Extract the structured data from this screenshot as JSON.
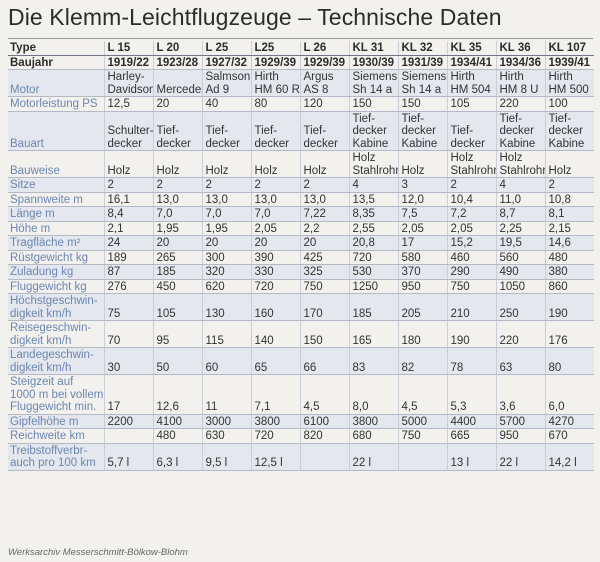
{
  "title": "Die Klemm-Leichtflugzeuge – Technische Daten",
  "caption": "Werksarchiv Messerschmitt-Bölkow-Blohm",
  "table": {
    "header_label": "Type",
    "types": [
      "L 15",
      "L 20",
      "L 25",
      "L25",
      "L 26",
      "KL 31",
      "KL 32",
      "KL 35",
      "KL 36",
      "KL 107"
    ],
    "rows": [
      {
        "label": [
          "Baujahr"
        ],
        "values": [
          [
            "1919/22"
          ],
          [
            "1923/28"
          ],
          [
            "1927/32"
          ],
          [
            "1929/39"
          ],
          [
            "1929/39"
          ],
          [
            "1930/39"
          ],
          [
            "1931/39"
          ],
          [
            "1934/41"
          ],
          [
            "1934/36"
          ],
          [
            "1939/41"
          ]
        ]
      },
      {
        "label": [
          "Motor"
        ],
        "values": [
          [
            "Harley-",
            "Davidson"
          ],
          [
            "Mercedes"
          ],
          [
            "Salmson",
            "Ad 9"
          ],
          [
            "Hirth",
            "HM 60 R"
          ],
          [
            "Argus",
            "AS 8"
          ],
          [
            "Siemens",
            "Sh 14 a"
          ],
          [
            "Siemens",
            "Sh 14 a"
          ],
          [
            "Hirth",
            "HM 504"
          ],
          [
            "Hirth",
            "HM 8 U"
          ],
          [
            "Hirth",
            "HM 500"
          ]
        ]
      },
      {
        "label": [
          "Motorleistung PS"
        ],
        "values": [
          [
            "12,5"
          ],
          [
            "20"
          ],
          [
            "40"
          ],
          [
            "80"
          ],
          [
            "120"
          ],
          [
            "150"
          ],
          [
            "150"
          ],
          [
            "105"
          ],
          [
            "220"
          ],
          [
            "100"
          ]
        ]
      },
      {
        "label": [
          "Bauart"
        ],
        "values": [
          [
            "Schulter-",
            "decker"
          ],
          [
            "Tief-",
            "decker"
          ],
          [
            "Tief-",
            "decker"
          ],
          [
            "Tief-",
            "decker"
          ],
          [
            "Tief-",
            "decker"
          ],
          [
            "Tief-",
            "decker",
            "Kabine"
          ],
          [
            "Tief-",
            "decker",
            "Kabine"
          ],
          [
            "Tief-",
            "decker"
          ],
          [
            "Tief-",
            "decker",
            "Kabine"
          ],
          [
            "Tief-",
            "decker",
            "Kabine"
          ]
        ]
      },
      {
        "label": [
          "Bauweise"
        ],
        "values": [
          [
            "Holz"
          ],
          [
            "Holz"
          ],
          [
            "Holz"
          ],
          [
            "Holz"
          ],
          [
            "Holz"
          ],
          [
            "Holz",
            "Stahlrohr"
          ],
          [
            "Holz"
          ],
          [
            "Holz",
            "Stahlrohr"
          ],
          [
            "Holz",
            "Stahlrohr"
          ],
          [
            "Holz"
          ]
        ]
      },
      {
        "label": [
          "Sitze"
        ],
        "values": [
          [
            "2"
          ],
          [
            "2"
          ],
          [
            "2"
          ],
          [
            "2"
          ],
          [
            "2"
          ],
          [
            "4"
          ],
          [
            "3"
          ],
          [
            "2"
          ],
          [
            "4"
          ],
          [
            "2"
          ]
        ]
      },
      {
        "label": [
          "Spannweite m"
        ],
        "values": [
          [
            "16,1"
          ],
          [
            "13,0"
          ],
          [
            "13,0"
          ],
          [
            "13,0"
          ],
          [
            "13,0"
          ],
          [
            "13,5"
          ],
          [
            "12,0"
          ],
          [
            "10,4"
          ],
          [
            "11,0"
          ],
          [
            "10,8"
          ]
        ]
      },
      {
        "label": [
          "Länge m"
        ],
        "values": [
          [
            "8,4"
          ],
          [
            "7,0"
          ],
          [
            "7,0"
          ],
          [
            "7,0"
          ],
          [
            "7,22"
          ],
          [
            "8,35"
          ],
          [
            "7,5"
          ],
          [
            "7,2"
          ],
          [
            "8,7"
          ],
          [
            "8,1"
          ]
        ]
      },
      {
        "label": [
          "Höhe m"
        ],
        "values": [
          [
            "2,1"
          ],
          [
            "1,95"
          ],
          [
            "1,95"
          ],
          [
            "2,05"
          ],
          [
            "2,2"
          ],
          [
            "2,55"
          ],
          [
            "2,05"
          ],
          [
            "2,05"
          ],
          [
            "2,25"
          ],
          [
            "2,15"
          ]
        ]
      },
      {
        "label": [
          "Tragfläche m²"
        ],
        "values": [
          [
            "24"
          ],
          [
            "20"
          ],
          [
            "20"
          ],
          [
            "20"
          ],
          [
            "20"
          ],
          [
            "20,8"
          ],
          [
            "17"
          ],
          [
            "15,2"
          ],
          [
            "19,5"
          ],
          [
            "14,6"
          ]
        ]
      },
      {
        "label": [
          "Rüstgewicht kg"
        ],
        "values": [
          [
            "189"
          ],
          [
            "265"
          ],
          [
            "300"
          ],
          [
            "390"
          ],
          [
            "425"
          ],
          [
            "720"
          ],
          [
            "580"
          ],
          [
            "460"
          ],
          [
            "560"
          ],
          [
            "480"
          ]
        ]
      },
      {
        "label": [
          "Zuladung kg"
        ],
        "values": [
          [
            "87"
          ],
          [
            "185"
          ],
          [
            "320"
          ],
          [
            "330"
          ],
          [
            "325"
          ],
          [
            "530"
          ],
          [
            "370"
          ],
          [
            "290"
          ],
          [
            "490"
          ],
          [
            "380"
          ]
        ]
      },
      {
        "label": [
          "Fluggewicht kg"
        ],
        "values": [
          [
            "276"
          ],
          [
            "450"
          ],
          [
            "620"
          ],
          [
            "720"
          ],
          [
            "750"
          ],
          [
            "1250"
          ],
          [
            "950"
          ],
          [
            "750"
          ],
          [
            "1050"
          ],
          [
            "860"
          ]
        ]
      },
      {
        "label": [
          "Höchstgeschwin-",
          "digkeit km/h"
        ],
        "values": [
          [
            "75"
          ],
          [
            "105"
          ],
          [
            "130"
          ],
          [
            "160"
          ],
          [
            "170"
          ],
          [
            "185"
          ],
          [
            "205"
          ],
          [
            "210"
          ],
          [
            "250"
          ],
          [
            "190"
          ]
        ]
      },
      {
        "label": [
          "Reisegeschwin-",
          "digkeit km/h"
        ],
        "values": [
          [
            "70"
          ],
          [
            "95"
          ],
          [
            "115"
          ],
          [
            "140"
          ],
          [
            "150"
          ],
          [
            "165"
          ],
          [
            "180"
          ],
          [
            "190"
          ],
          [
            "220"
          ],
          [
            "176"
          ]
        ]
      },
      {
        "label": [
          "Landegeschwin-",
          "digkeit km/h"
        ],
        "values": [
          [
            "30"
          ],
          [
            "50"
          ],
          [
            "60"
          ],
          [
            "65"
          ],
          [
            "66"
          ],
          [
            "83"
          ],
          [
            "82"
          ],
          [
            "78"
          ],
          [
            "63"
          ],
          [
            "80"
          ]
        ]
      },
      {
        "label": [
          "Steigzeit auf",
          "1000 m bei vollem",
          "Fluggewicht min."
        ],
        "values": [
          [
            "17"
          ],
          [
            "12,6"
          ],
          [
            "11"
          ],
          [
            "7,1"
          ],
          [
            "4,5"
          ],
          [
            "8,0"
          ],
          [
            "4,5"
          ],
          [
            "5,3"
          ],
          [
            "3,6"
          ],
          [
            "6,0"
          ]
        ]
      },
      {
        "label": [
          "Gipfelhöhe m"
        ],
        "values": [
          [
            "2200"
          ],
          [
            "4100"
          ],
          [
            "3000"
          ],
          [
            "3800"
          ],
          [
            "6100"
          ],
          [
            "3800"
          ],
          [
            "5000"
          ],
          [
            "4400"
          ],
          [
            "5700"
          ],
          [
            "4270"
          ]
        ]
      },
      {
        "label": [
          "Reichweite km"
        ],
        "values": [
          [
            ""
          ],
          [
            "480"
          ],
          [
            "630"
          ],
          [
            "720"
          ],
          [
            "820"
          ],
          [
            "680"
          ],
          [
            "750"
          ],
          [
            "665"
          ],
          [
            "950"
          ],
          [
            "670"
          ]
        ]
      },
      {
        "label": [
          "Treibstoffverbr-",
          "auch pro 100 km"
        ],
        "values": [
          [
            "5,7 l"
          ],
          [
            "6,3 l"
          ],
          [
            "9,5 l"
          ],
          [
            "12,5 l"
          ],
          [
            ""
          ],
          [
            "22 l"
          ],
          [
            ""
          ],
          [
            "13 l"
          ],
          [
            "22 l"
          ],
          [
            "14,2 l"
          ]
        ]
      }
    ]
  }
}
